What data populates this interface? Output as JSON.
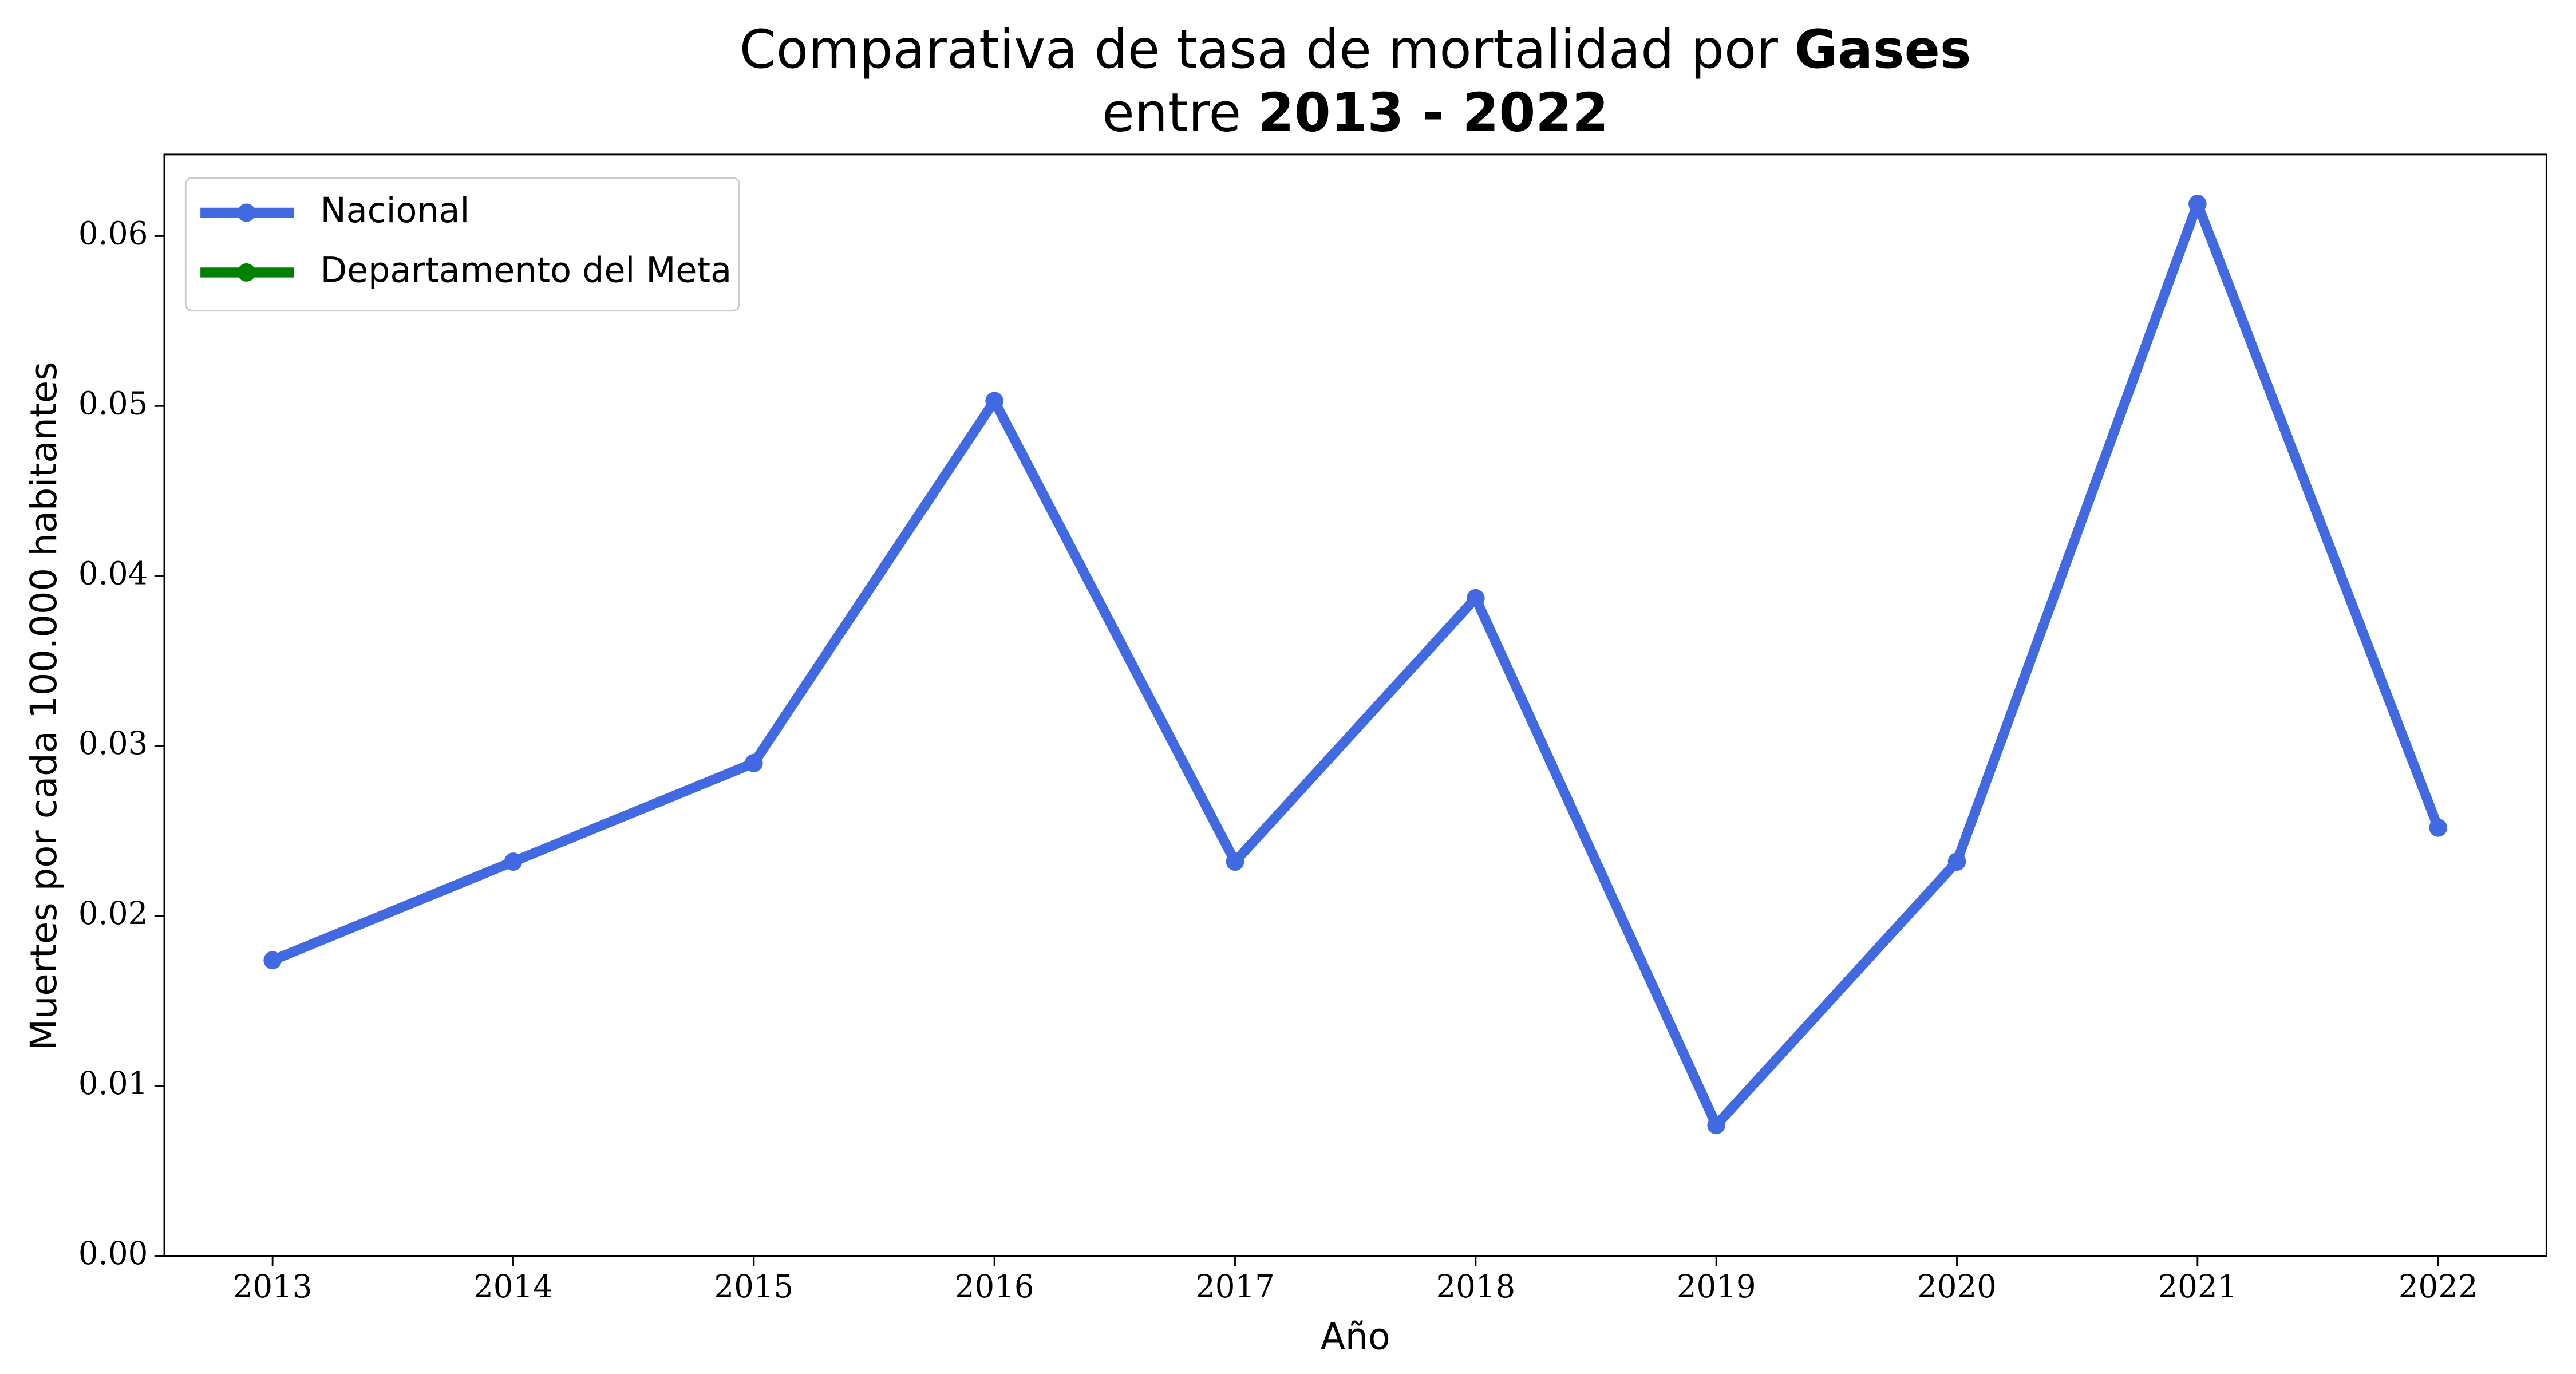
{
  "chart_data": {
    "type": "line",
    "title": [
      [
        "Comparativa de tasa de mortalidad por",
        "Gases"
      ],
      [
        "entre",
        "2013 - 2022"
      ]
    ],
    "x_label": "Año",
    "y_label": "Muertes por cada 100.000 habitantes",
    "x": [
      2013,
      2014,
      2015,
      2016,
      2017,
      2018,
      2019,
      2020,
      2021,
      2022
    ],
    "series": [
      {
        "name": "Nacional",
        "color": "#4169e1",
        "values": [
          0.0174,
          0.0232,
          0.029,
          0.0503,
          0.0232,
          0.0387,
          0.0077,
          0.0232,
          0.0619,
          0.0252
        ]
      },
      {
        "name": "Departamento del Meta",
        "color": "#008000",
        "values": [
          null,
          null,
          null,
          null,
          null,
          null,
          null,
          null,
          null,
          null
        ]
      }
    ],
    "xlim": [
      2012.55,
      2022.45
    ],
    "ylim": [
      0,
      0.0648
    ],
    "xticks": [
      2013,
      2014,
      2015,
      2016,
      2017,
      2018,
      2019,
      2020,
      2021,
      2022
    ],
    "yticks": [
      {
        "value": 0,
        "label": "0.00"
      },
      {
        "value": 0.01,
        "label": "0.01"
      },
      {
        "value": 0.02,
        "label": "0.02"
      },
      {
        "value": 0.03,
        "label": "0.03"
      },
      {
        "value": 0.04,
        "label": "0.04"
      },
      {
        "value": 0.05,
        "label": "0.05"
      },
      {
        "value": 0.06,
        "label": "0.06"
      }
    ],
    "legend": "upper left",
    "grid": false
  }
}
